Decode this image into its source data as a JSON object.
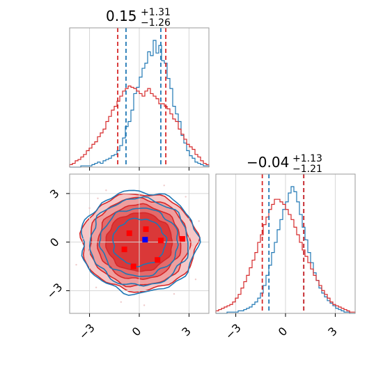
{
  "chart_data": {
    "type": "corner",
    "colors": {
      "blue": "#1f77b4",
      "red": "#d62728"
    },
    "panels": [
      {
        "id": "hist-param1",
        "type": "histogram",
        "title": {
          "median": "0.15",
          "upper": "+1.31",
          "lower": "−1.26"
        },
        "xlim": [
          -4.2,
          4.2
        ],
        "xticks": [
          -3,
          0,
          3
        ],
        "series": [
          {
            "color": "blue",
            "quantile_lines": [
              -0.8,
              1.3
            ],
            "values": [
              0.0,
              0.0,
              0.0,
              0.0,
              0.01,
              0.01,
              0.01,
              0.01,
              0.02,
              0.03,
              0.04,
              0.03,
              0.05,
              0.06,
              0.07,
              0.09,
              0.1,
              0.13,
              0.17,
              0.23,
              0.32,
              0.36,
              0.45,
              0.58,
              0.63,
              0.71,
              0.78,
              0.82,
              0.91,
              0.88,
              1.0,
              0.9,
              0.96,
              0.84,
              0.82,
              0.7,
              0.62,
              0.48,
              0.42,
              0.36,
              0.25,
              0.19,
              0.13,
              0.09,
              0.07,
              0.04,
              0.03,
              0.02,
              0.01,
              0.01
            ]
          },
          {
            "color": "red",
            "quantile_lines": [
              -1.3,
              1.6
            ],
            "values": [
              0.02,
              0.03,
              0.05,
              0.06,
              0.08,
              0.1,
              0.13,
              0.15,
              0.18,
              0.2,
              0.24,
              0.27,
              0.3,
              0.36,
              0.4,
              0.45,
              0.48,
              0.52,
              0.56,
              0.6,
              0.62,
              0.64,
              0.63,
              0.62,
              0.6,
              0.58,
              0.56,
              0.6,
              0.62,
              0.58,
              0.56,
              0.54,
              0.5,
              0.5,
              0.48,
              0.46,
              0.42,
              0.38,
              0.36,
              0.3,
              0.26,
              0.22,
              0.18,
              0.16,
              0.14,
              0.1,
              0.08,
              0.05,
              0.03,
              0.02
            ]
          }
        ]
      },
      {
        "id": "hist-param2",
        "type": "histogram",
        "title": {
          "median": "−0.04",
          "upper": "+1.13",
          "lower": "−1.21"
        },
        "xlim": [
          -4.2,
          4.2
        ],
        "xticks": [
          -3,
          0,
          3
        ],
        "series": [
          {
            "color": "blue",
            "quantile_lines": [
              -1.0,
              1.1
            ],
            "values": [
              0.0,
              0.0,
              0.0,
              0.0,
              0.01,
              0.01,
              0.01,
              0.01,
              0.02,
              0.02,
              0.03,
              0.04,
              0.05,
              0.07,
              0.09,
              0.12,
              0.16,
              0.22,
              0.3,
              0.38,
              0.48,
              0.56,
              0.66,
              0.74,
              0.82,
              0.88,
              0.95,
              1.0,
              0.96,
              0.88,
              0.78,
              0.68,
              0.58,
              0.48,
              0.4,
              0.32,
              0.26,
              0.2,
              0.16,
              0.13,
              0.1,
              0.08,
              0.06,
              0.04,
              0.03,
              0.02,
              0.01,
              0.01,
              0.0,
              0.0
            ]
          },
          {
            "color": "red",
            "quantile_lines": [
              -1.4,
              1.1
            ],
            "values": [
              0.02,
              0.03,
              0.04,
              0.05,
              0.06,
              0.07,
              0.09,
              0.12,
              0.15,
              0.2,
              0.25,
              0.3,
              0.36,
              0.42,
              0.48,
              0.56,
              0.62,
              0.7,
              0.76,
              0.82,
              0.86,
              0.9,
              0.9,
              0.88,
              0.86,
              0.82,
              0.78,
              0.74,
              0.68,
              0.62,
              0.56,
              0.5,
              0.45,
              0.4,
              0.35,
              0.3,
              0.26,
              0.22,
              0.18,
              0.15,
              0.12,
              0.09,
              0.07,
              0.06,
              0.05,
              0.04,
              0.03,
              0.02,
              0.01,
              0.01
            ]
          }
        ]
      },
      {
        "id": "contour-2d",
        "type": "contour",
        "xlim": [
          -4.2,
          4.2
        ],
        "ylim": [
          -4.4,
          4.2
        ],
        "xticks": [
          -3,
          0,
          3
        ],
        "yticks": [
          -3,
          0,
          3
        ],
        "xtick_labels": [
          "−3",
          "0",
          "3"
        ],
        "ytick_labels": [
          "−3",
          "0",
          "3"
        ],
        "levels": [
          {
            "rx": 3.5,
            "ry": 3.0,
            "fill": "#f6c7c7"
          },
          {
            "rx": 3.0,
            "ry": 2.7,
            "fill": "#ef9e9e"
          },
          {
            "rx": 2.5,
            "ry": 2.3,
            "fill": "#e46a6a"
          },
          {
            "rx": 2.0,
            "ry": 1.8,
            "fill": "#da3838"
          }
        ],
        "blue_contours": [
          {
            "rx": 3.5,
            "ry": 3.15
          },
          {
            "rx": 2.95,
            "ry": 2.7
          },
          {
            "rx": 2.35,
            "ry": 2.1
          },
          {
            "rx": 1.6,
            "ry": 1.45
          }
        ],
        "red_markers": [
          [
            -0.6,
            0.55
          ],
          [
            0.4,
            0.8
          ],
          [
            -0.9,
            -0.45
          ],
          [
            1.3,
            0.1
          ],
          [
            -0.35,
            -1.5
          ],
          [
            1.1,
            -1.1
          ],
          [
            2.6,
            0.2
          ]
        ],
        "blue_markers": [
          [
            0.35,
            0.15
          ]
        ],
        "scatter_points": [
          [
            -2.5,
            2.7
          ],
          [
            -3.4,
            0.2
          ],
          [
            3.2,
            -0.2
          ],
          [
            -2.6,
            -2.8
          ],
          [
            2.8,
            2.8
          ],
          [
            -3.0,
            2.1
          ],
          [
            2.1,
            -3.2
          ],
          [
            -1.1,
            -3.7
          ],
          [
            3.6,
            1.3
          ],
          [
            -3.8,
            -1.4
          ],
          [
            1.5,
            3.5
          ],
          [
            0.3,
            -3.9
          ],
          [
            -2.0,
            3.2
          ],
          [
            3.4,
            -2.3
          ]
        ]
      }
    ]
  }
}
